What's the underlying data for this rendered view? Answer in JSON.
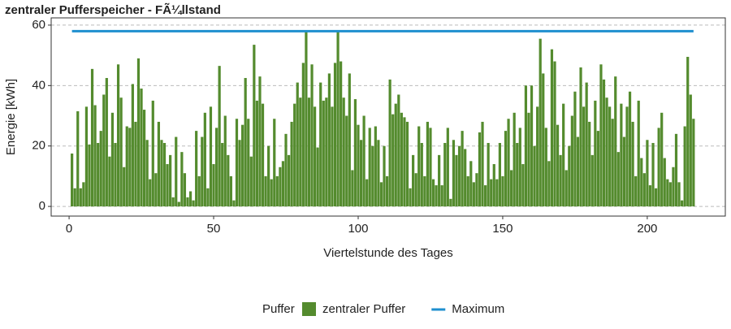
{
  "chart_data": {
    "type": "bar",
    "title": "zentraler Pufferspeicher - FÃ¼llstand",
    "x_label": "Viertelstunde des Tages",
    "y_label": "Energie [kWh]",
    "legend_title": "Puffer",
    "xlim": [
      -6.2,
      227
    ],
    "ylim": [
      -3.2,
      62.4
    ],
    "xticks": [
      0,
      50,
      100,
      150,
      200
    ],
    "yticks": [
      0,
      20,
      40,
      60
    ],
    "grid": true,
    "series": [
      {
        "name": "zentraler Puffer",
        "color": "#548b2e",
        "type": "bar",
        "x": [
          1,
          2,
          3,
          4,
          5,
          6,
          7,
          8,
          9,
          10,
          11,
          12,
          13,
          14,
          15,
          16,
          17,
          18,
          19,
          20,
          21,
          22,
          23,
          24,
          25,
          26,
          27,
          28,
          29,
          30,
          31,
          32,
          33,
          34,
          35,
          36,
          37,
          38,
          39,
          40,
          41,
          42,
          43,
          44,
          45,
          46,
          47,
          48,
          49,
          50,
          51,
          52,
          53,
          54,
          55,
          56,
          57,
          58,
          59,
          60,
          61,
          62,
          63,
          64,
          65,
          66,
          67,
          68,
          69,
          70,
          71,
          72,
          73,
          74,
          75,
          76,
          77,
          78,
          79,
          80,
          81,
          82,
          83,
          84,
          85,
          86,
          87,
          88,
          89,
          90,
          91,
          92,
          93,
          94,
          95,
          96,
          97,
          98,
          99,
          100,
          101,
          102,
          103,
          104,
          105,
          106,
          107,
          108,
          109,
          110,
          111,
          112,
          113,
          114,
          115,
          116,
          117,
          118,
          119,
          120,
          121,
          122,
          123,
          124,
          125,
          126,
          127,
          128,
          129,
          130,
          131,
          132,
          133,
          134,
          135,
          136,
          137,
          138,
          139,
          140,
          141,
          142,
          143,
          144,
          145,
          146,
          147,
          148,
          149,
          150,
          151,
          152,
          153,
          154,
          155,
          156,
          157,
          158,
          159,
          160,
          161,
          162,
          163,
          164,
          165,
          166,
          167,
          168,
          169,
          170,
          171,
          172,
          173,
          174,
          175,
          176,
          177,
          178,
          179,
          180,
          181,
          182,
          183,
          184,
          185,
          186,
          187,
          188,
          189,
          190,
          191,
          192,
          193,
          194,
          195,
          196,
          197,
          198,
          199,
          200,
          201,
          202,
          203,
          204,
          205,
          206,
          207,
          208,
          209,
          210,
          211,
          212,
          213,
          214,
          215,
          216
        ],
        "values": [
          17.5,
          6,
          31.5,
          6,
          8,
          33,
          20.5,
          45.5,
          33.5,
          21,
          25,
          37,
          42.5,
          16.5,
          31,
          21,
          47,
          36,
          13,
          26.5,
          26,
          40.5,
          28,
          49,
          39,
          32,
          22,
          9,
          35,
          11,
          28,
          22,
          21,
          14,
          17,
          3,
          23,
          1.5,
          18,
          11,
          3,
          5,
          2,
          25,
          10,
          23,
          31,
          6,
          33,
          14,
          26,
          46.5,
          21,
          30,
          17,
          10,
          2,
          29,
          22,
          27,
          42.5,
          29,
          16.5,
          53.5,
          35,
          43,
          34,
          10,
          20,
          9,
          29,
          10,
          13,
          15,
          24,
          17,
          28,
          34,
          41,
          36,
          47.5,
          58,
          36,
          47,
          33,
          19.5,
          41,
          35,
          36,
          44,
          33,
          47.5,
          58,
          48,
          36,
          30,
          44,
          12,
          35.5,
          27,
          22,
          30,
          9,
          26,
          20,
          26.5,
          22,
          8,
          20,
          10,
          42,
          30.5,
          34,
          37,
          31,
          29.5,
          28,
          6,
          17,
          11,
          26.5,
          21,
          10,
          28,
          26,
          9,
          7,
          17,
          7,
          21,
          26,
          2.5,
          22,
          17,
          20,
          25,
          19,
          10,
          15,
          8,
          11,
          24.5,
          28,
          7,
          21,
          9,
          14,
          9,
          21,
          10,
          25,
          29,
          12,
          31,
          21,
          26,
          14,
          40,
          31,
          40,
          20,
          33,
          55.5,
          44,
          26,
          15,
          52,
          48,
          27,
          17,
          34,
          12,
          20,
          30,
          38,
          23,
          46,
          33,
          41,
          28,
          17,
          35,
          25,
          47,
          42,
          36,
          33,
          29,
          43,
          18,
          34,
          23,
          33,
          38,
          28,
          10,
          35,
          16,
          11,
          22,
          7,
          21,
          6,
          26,
          31,
          16,
          9,
          8,
          13,
          24,
          8,
          2,
          26.5,
          49.5,
          37,
          29
        ]
      },
      {
        "name": "Maximum",
        "color": "#1f8fcf",
        "type": "line",
        "x": [
          1,
          216
        ],
        "values": [
          58,
          58
        ]
      }
    ]
  }
}
